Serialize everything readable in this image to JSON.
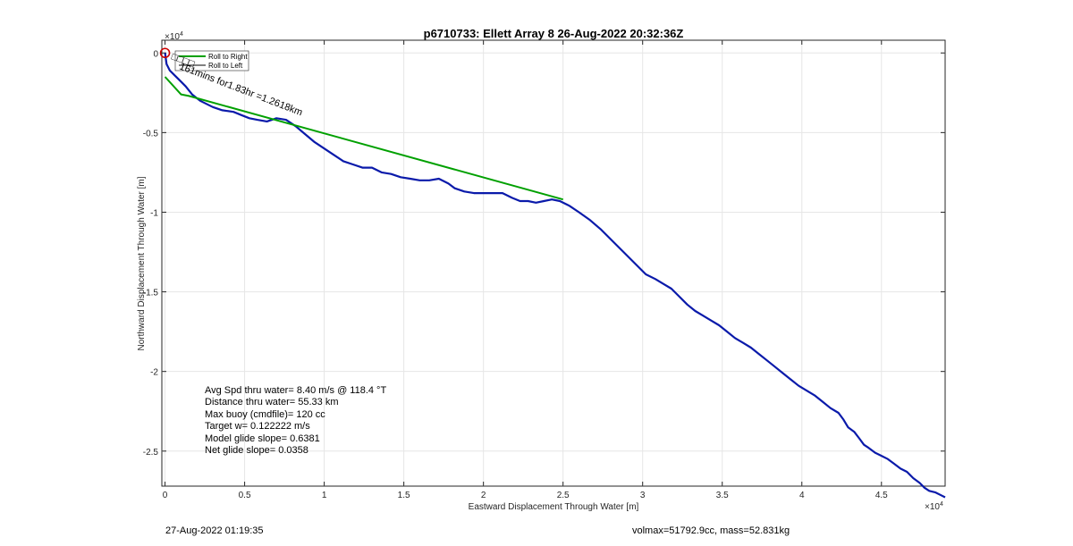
{
  "chart_data": {
    "type": "line",
    "title": "p6710733: Ellett Array 8 26-Aug-2022 20:32:36Z",
    "xlabel": "Eastward Displacement Through Water [m]",
    "ylabel": "Northward Displacement Through Water [m]",
    "x_exponent": "×10",
    "x_exponent_power": "4",
    "y_exponent": "×10",
    "y_exponent_power": "4",
    "xlim": [
      -200,
      49000
    ],
    "ylim": [
      -27200,
      800
    ],
    "xticks": [
      0,
      5000,
      10000,
      15000,
      20000,
      25000,
      30000,
      35000,
      40000,
      45000
    ],
    "xtick_labels": [
      "0",
      "0.5",
      "1",
      "1.5",
      "2",
      "2.5",
      "3",
      "3.5",
      "4",
      "4.5"
    ],
    "yticks": [
      0,
      -5000,
      -10000,
      -15000,
      -20000,
      -25000
    ],
    "ytick_labels": [
      "0",
      "-0.5",
      "-1",
      "-1.5",
      "-2",
      "-2.5"
    ],
    "grid": true,
    "legend": {
      "placement": "top-left",
      "entries": [
        "Roll to Right",
        "Roll to Left"
      ],
      "colors": [
        "#00a000",
        "#000000"
      ]
    },
    "series": [
      {
        "color": "#0a1aaa",
        "x": [
          0,
          100,
          300,
          600,
          1000,
          1300,
          1700,
          2200,
          3000,
          3600,
          4300,
          4800,
          5300,
          5800,
          6400,
          7000,
          7600,
          8200,
          8800,
          9400,
          10000,
          10600,
          11200,
          11800,
          12400,
          13000,
          13600,
          14200,
          14800,
          15400,
          16000,
          16600,
          17200,
          17800,
          18200,
          18800,
          19400,
          20000,
          20600,
          21200,
          21800,
          22300,
          22800,
          23300,
          23800,
          24300,
          24800,
          25400,
          26000,
          26700,
          27400,
          28100,
          28800,
          29500,
          30200,
          30800,
          31300,
          31800,
          32300,
          32800,
          33300,
          33800,
          34300,
          34800,
          35300,
          35800,
          36300,
          36800,
          37300,
          37800,
          38300,
          38800,
          39300,
          39800,
          40300,
          40800,
          41300,
          41800,
          42300,
          42600,
          42900,
          43300,
          43600,
          43900,
          44200,
          44600,
          45000,
          45400,
          45800,
          46200,
          46600,
          47000,
          47400,
          47700,
          48000,
          48400,
          48800,
          49000
        ],
        "y": [
          0,
          -700,
          -1100,
          -1400,
          -1800,
          -2100,
          -2600,
          -3000,
          -3400,
          -3600,
          -3700,
          -3900,
          -4100,
          -4200,
          -4300,
          -4100,
          -4200,
          -4600,
          -5100,
          -5600,
          -6000,
          -6400,
          -6800,
          -7000,
          -7200,
          -7200,
          -7500,
          -7600,
          -7800,
          -7900,
          -8000,
          -8000,
          -7900,
          -8200,
          -8500,
          -8700,
          -8800,
          -8800,
          -8800,
          -8800,
          -9100,
          -9300,
          -9300,
          -9400,
          -9300,
          -9200,
          -9300,
          -9600,
          -10000,
          -10500,
          -11100,
          -11800,
          -12500,
          -13200,
          -13900,
          -14200,
          -14500,
          -14800,
          -15300,
          -15800,
          -16200,
          -16500,
          -16800,
          -17100,
          -17500,
          -17900,
          -18200,
          -18500,
          -18900,
          -19300,
          -19700,
          -20100,
          -20500,
          -20900,
          -21200,
          -21500,
          -21900,
          -22300,
          -22600,
          -23000,
          -23500,
          -23800,
          -24200,
          -24600,
          -24800,
          -25100,
          -25300,
          -25500,
          -25800,
          -26100,
          -26300,
          -26700,
          -27000,
          -27300,
          -27500,
          -27600,
          -27800,
          -27900
        ]
      },
      {
        "color": "#00a000",
        "x": [
          0,
          1000,
          1500,
          25000
        ],
        "y": [
          -1500,
          -2600,
          -2700,
          -9200
        ]
      }
    ],
    "annotations": {
      "marker_labels": "□□□□",
      "duration_label": "161mins for1.83hr =1.2618km",
      "start_marker_color": "#cc0000"
    }
  },
  "stats": [
    "Avg Spd thru water=  8.40 m/s @ 118.4 °T",
    "Distance thru water= 55.33 km",
    "Max buoy (cmdfile)= 120 cc",
    "Target w= 0.122222 m/s",
    "Model glide slope= 0.6381",
    "Net glide slope= 0.0358"
  ],
  "footer": {
    "timestamp": "27-Aug-2022 01:19:35",
    "vol_mass": "volmax=51792.9cc, mass=52.831kg"
  }
}
